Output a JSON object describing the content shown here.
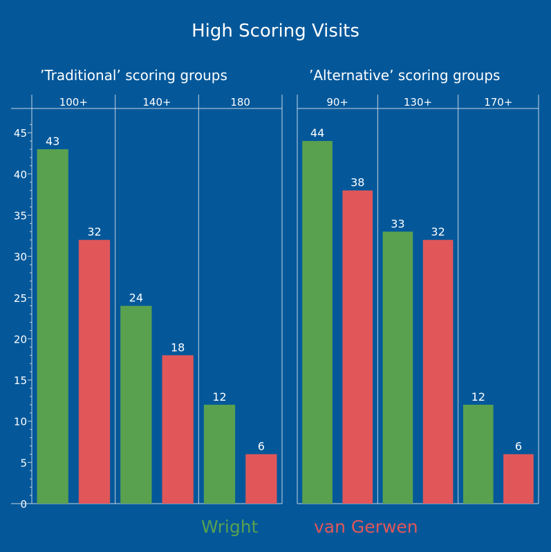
{
  "title": "High Scoring Visits",
  "legend": {
    "wright": "Wright",
    "van_gerwen": "van Gerwen"
  },
  "colors": {
    "background": "#04589a",
    "wright": "#59a14f",
    "van_gerwen": "#e15759",
    "gridline": "#c8d4e2",
    "text": "#ffffff"
  },
  "chart_data": {
    "type": "bar",
    "title": "High Scoring Visits",
    "ylim": [
      0,
      47
    ],
    "y_ticks": [
      0,
      5,
      10,
      15,
      20,
      25,
      30,
      35,
      40,
      45
    ],
    "series_names": [
      "Wright",
      "van Gerwen"
    ],
    "panels": [
      {
        "title": "’Traditional’ scoring groups",
        "categories": [
          "100+",
          "140+",
          "180"
        ],
        "series": [
          {
            "name": "Wright",
            "values": [
              43,
              24,
              12
            ]
          },
          {
            "name": "van Gerwen",
            "values": [
              32,
              18,
              6
            ]
          }
        ]
      },
      {
        "title": "’Alternative’ scoring groups",
        "categories": [
          "90+",
          "130+",
          "170+"
        ],
        "series": [
          {
            "name": "Wright",
            "values": [
              44,
              33,
              12
            ]
          },
          {
            "name": "van Gerwen",
            "values": [
              38,
              32,
              6
            ]
          }
        ]
      }
    ]
  }
}
